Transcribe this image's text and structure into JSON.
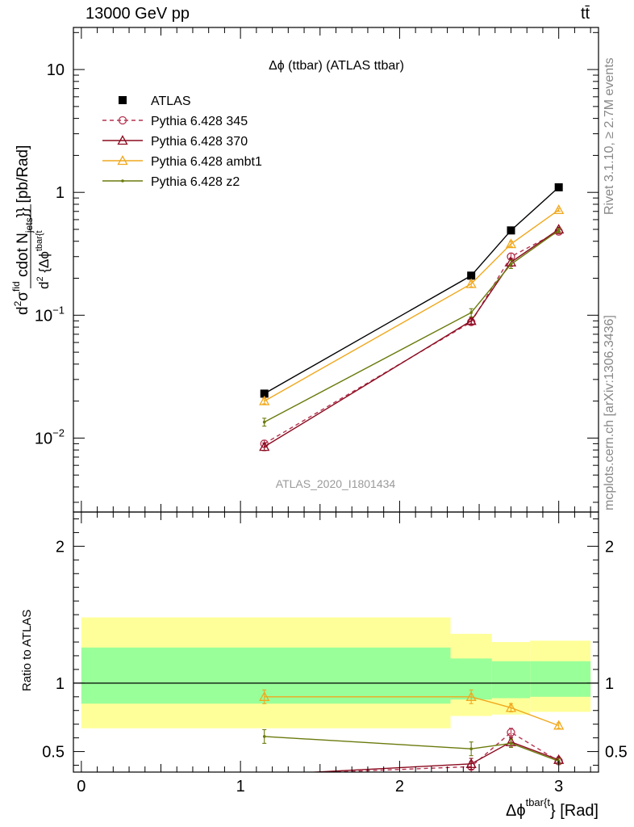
{
  "header": {
    "left": "13000 GeV pp",
    "right": "tt̄"
  },
  "side_labels": {
    "rivet": "Rivet 3.1.10, ≥ 2.7M events",
    "mcplots": "mcplots.cern.ch [arXiv:1306.3436]"
  },
  "chart_data": [
    {
      "type": "line",
      "panel": "main",
      "title": "Δϕ (ttbar) (ATLAS ttbar)",
      "watermark": "ATLAS_2020_I1801434",
      "ylabel_parts": {
        "d": "d",
        "sup2": "2",
        "sigma": "σ",
        "fid": "fid",
        "cdot": " cdot N",
        "jets": "jets",
        "braces": "}} [pb/Rad]",
        "den_d": "d",
        "den_sup2": "2",
        "den_brace": " {Δϕ",
        "den_sup": "tbar{t"
      },
      "yscale": "log",
      "ylim": [
        0.0025,
        22
      ],
      "xlim": [
        -0.05,
        3.25
      ],
      "yticks": [
        {
          "value": 0.01,
          "base": "10",
          "exp": "−2"
        },
        {
          "value": 0.1,
          "base": "10",
          "exp": "−1"
        },
        {
          "value": 1,
          "base": "1",
          "exp": ""
        },
        {
          "value": 10,
          "base": "10",
          "exp": ""
        }
      ],
      "legend_position": "top-left",
      "series": [
        {
          "name": "ATLAS",
          "color": "#000000",
          "marker": "square",
          "x": [
            1.15,
            2.45,
            2.7,
            3.0
          ],
          "y": [
            0.023,
            0.21,
            0.49,
            1.1
          ]
        },
        {
          "name": "Pythia 6.428 345",
          "color": "#b5334f",
          "marker": "circle",
          "dash": "5,4",
          "x": [
            1.15,
            2.45,
            2.7,
            3.0
          ],
          "y": [
            0.009,
            0.088,
            0.3,
            0.48
          ],
          "err": [
            0.0006,
            0.005,
            0.02,
            0.02
          ]
        },
        {
          "name": "Pythia 6.428 370",
          "color": "#8b0a1f",
          "marker": "triangle",
          "x": [
            1.15,
            2.45,
            2.7,
            3.0
          ],
          "y": [
            0.0085,
            0.09,
            0.27,
            0.5
          ],
          "err": [
            0.0006,
            0.005,
            0.02,
            0.02
          ]
        },
        {
          "name": "Pythia 6.428 ambt1",
          "color": "#f0a81e",
          "marker": "triangle",
          "x": [
            1.15,
            2.45,
            2.7,
            3.0
          ],
          "y": [
            0.02,
            0.18,
            0.38,
            0.72
          ],
          "err": [
            0.001,
            0.01,
            0.02,
            0.02
          ]
        },
        {
          "name": "Pythia 6.428 z2",
          "color": "#6b7a0c",
          "marker": "dot",
          "x": [
            1.15,
            2.45,
            2.7,
            3.0
          ],
          "y": [
            0.0135,
            0.105,
            0.26,
            0.49
          ],
          "err": [
            0.001,
            0.008,
            0.02,
            0.02
          ]
        }
      ]
    },
    {
      "type": "line",
      "panel": "ratio",
      "ylabel": "Ratio to ATLAS",
      "xlabel_parts": {
        "main": "Δϕ",
        "sup": "tbar{t",
        "tail": "} [Rad]"
      },
      "ylim": [
        0.35,
        2.25
      ],
      "xlim": [
        -0.05,
        3.25
      ],
      "xticks": [
        0,
        1,
        2,
        3
      ],
      "yticks": [
        0.5,
        1,
        2
      ],
      "bands": [
        {
          "x0": 0,
          "x1": 2.32,
          "yellow": [
            0.67,
            1.48
          ],
          "green": [
            0.85,
            1.26
          ]
        },
        {
          "x0": 2.32,
          "x1": 2.58,
          "yellow": [
            0.76,
            1.36
          ],
          "green": [
            0.88,
            1.18
          ]
        },
        {
          "x0": 2.58,
          "x1": 2.82,
          "yellow": [
            0.77,
            1.3
          ],
          "green": [
            0.89,
            1.16
          ]
        },
        {
          "x0": 2.82,
          "x1": 3.2,
          "yellow": [
            0.79,
            1.31
          ],
          "green": [
            0.9,
            1.16
          ]
        }
      ],
      "series": [
        {
          "name": "Pythia 6.428 345",
          "color": "#b5334f",
          "marker": "circle",
          "dash": "5,4",
          "x": [
            1.15,
            2.45,
            2.7,
            3.0
          ],
          "y": [
            0.33,
            0.39,
            0.64,
            0.43
          ],
          "err": [
            0.03,
            0.04,
            0.03,
            0.02
          ]
        },
        {
          "name": "Pythia 6.428 370",
          "color": "#8b0a1f",
          "marker": "triangle",
          "x": [
            1.15,
            2.45,
            2.7,
            3.0
          ],
          "y": [
            0.33,
            0.41,
            0.57,
            0.44
          ],
          "err": [
            0.03,
            0.04,
            0.03,
            0.02
          ]
        },
        {
          "name": "Pythia 6.428 ambt1",
          "color": "#f0a81e",
          "marker": "triangle",
          "x": [
            1.15,
            2.45,
            2.7,
            3.0
          ],
          "y": [
            0.9,
            0.9,
            0.82,
            0.69
          ],
          "err": [
            0.05,
            0.05,
            0.03,
            0.02
          ]
        },
        {
          "name": "Pythia 6.428 z2",
          "color": "#6b7a0c",
          "marker": "dot",
          "x": [
            1.15,
            2.45,
            2.7,
            3.0
          ],
          "y": [
            0.61,
            0.52,
            0.56,
            0.43
          ],
          "err": [
            0.05,
            0.05,
            0.03,
            0.02
          ]
        }
      ]
    }
  ]
}
